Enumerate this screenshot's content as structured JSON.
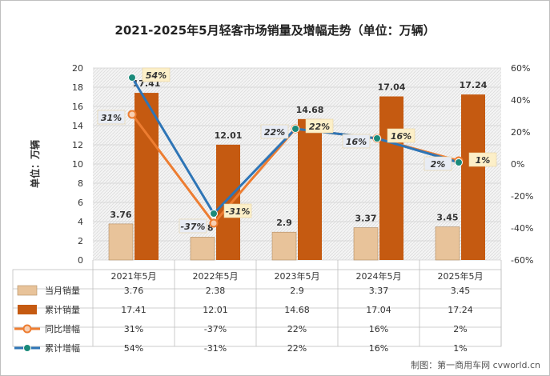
{
  "title": "2021-2025年5月轻客市场销量及增幅走势（单位：万辆）",
  "credit": "制图：第一商用车网 cvworld.cn",
  "colors": {
    "monthly": "#e8c39a",
    "cumulative": "#c55a11",
    "yoy": "#ed7d31",
    "cum_growth": "#2e75b6",
    "cum_growth_marker": "#1a8a7a"
  },
  "chart_data": {
    "type": "bar",
    "categories": [
      "2021年5月",
      "2022年5月",
      "2023年5月",
      "2024年5月",
      "2025年5月"
    ],
    "y_left": {
      "label": "单位：万辆",
      "range": [
        0,
        20
      ],
      "ticks": [
        "0",
        "2",
        "4",
        "6",
        "8",
        "10",
        "12",
        "14",
        "16",
        "18",
        "20"
      ]
    },
    "y_right": {
      "range": [
        -60,
        60
      ],
      "ticks": [
        "60%",
        "40%",
        "20%",
        "0%",
        "-20%",
        "-40%",
        "-60%"
      ]
    },
    "series": [
      {
        "name": "当月销量",
        "type": "bar",
        "values": [
          3.76,
          2.38,
          2.9,
          3.37,
          3.45
        ],
        "labels": [
          "3.76",
          "2.38",
          "2.9",
          "3.37",
          "3.45"
        ]
      },
      {
        "name": "累计销量",
        "type": "bar",
        "values": [
          17.41,
          12.01,
          14.68,
          17.04,
          17.24
        ],
        "labels": [
          "17.41",
          "12.01",
          "14.68",
          "17.04",
          "17.24"
        ]
      },
      {
        "name": "同比增幅",
        "type": "line",
        "axis": "right",
        "values": [
          31,
          -37,
          22,
          16,
          2
        ],
        "labels": [
          "31%",
          "-37%",
          "22%",
          "16%",
          "2%"
        ]
      },
      {
        "name": "累计增幅",
        "type": "line",
        "axis": "right",
        "values": [
          54,
          -31,
          22,
          16,
          1
        ],
        "labels": [
          "54%",
          "-31%",
          "22%",
          "16%",
          "1%"
        ]
      }
    ],
    "grid": true,
    "legend": "data-table"
  }
}
